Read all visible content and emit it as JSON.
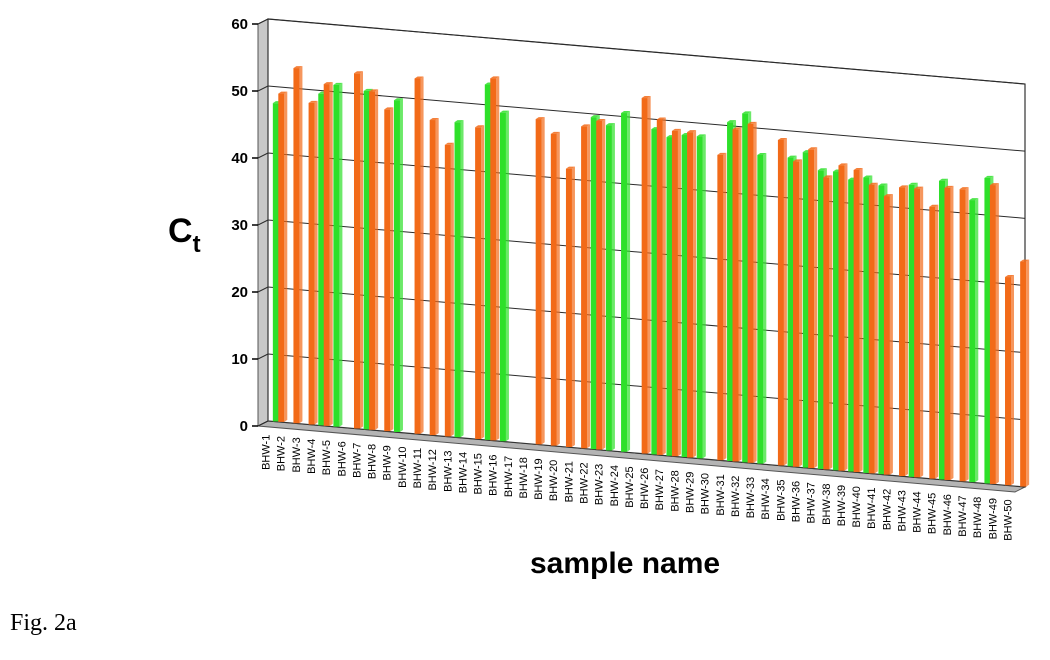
{
  "figure_caption": "Fig. 2a",
  "colors": {
    "series_a": "#f26a18",
    "series_b": "#2ee02a",
    "wall": "#c8c8c8",
    "floor": "#b4b4b4"
  },
  "chart_data": {
    "type": "bar",
    "title": "",
    "ylabel_main": "C",
    "ylabel_sub": "t",
    "xlabel": "sample name",
    "ylim": [
      0,
      60
    ],
    "yticks": [
      0,
      10,
      20,
      30,
      40,
      50,
      60
    ],
    "grid": true,
    "style": "3d",
    "categories": [
      "BHW-1",
      "BHW-2",
      "BHW-3",
      "BHW-4",
      "BHW-5",
      "BHW-6",
      "BHW-7",
      "BHW-8",
      "BHW-9",
      "BHW-10",
      "BHW-11",
      "BHW-12",
      "BHW-13",
      "BHW-14",
      "BHW-15",
      "BHW-16",
      "BHW-17",
      "BHW-18",
      "BHW-19",
      "BHW-20",
      "BHW-21",
      "BHW-22",
      "BHW-23",
      "BHW-24",
      "BHW-25",
      "BHW-26",
      "BHW-27",
      "BHW-28",
      "BHW-29",
      "BHW-30",
      "BHW-31",
      "BHW-32",
      "BHW-33",
      "BHW-34",
      "BHW-35",
      "BHW-36",
      "BHW-37",
      "BHW-38",
      "BHW-39",
      "BHW-40",
      "BHW-41",
      "BHW-42",
      "BHW-43",
      "BHW-44",
      "BHW-45",
      "BHW-46",
      "BHW-47",
      "BHW-48",
      "BHW-49",
      "BHW-50"
    ],
    "series": [
      {
        "color": "#2ee02a",
        "values": [
          47.5,
          null,
          null,
          49.5,
          51,
          null,
          50.5,
          null,
          49.5,
          null,
          null,
          null,
          47,
          null,
          53,
          49,
          null,
          null,
          null,
          null,
          null,
          49.5,
          48.5,
          50.5,
          null,
          48.5,
          47.5,
          48,
          48,
          null,
          50.5,
          52,
          46,
          null,
          46,
          47,
          44.5,
          44.5,
          43.5,
          44,
          43,
          null,
          43.5,
          null,
          44.5,
          null,
          42,
          45.5,
          null,
          null
        ]
      },
      {
        "color": "#f26a18",
        "values": [
          49,
          53,
          48,
          51,
          null,
          53,
          50.5,
          48,
          null,
          53,
          47,
          43.5,
          null,
          46.5,
          54,
          null,
          null,
          48.5,
          46.5,
          41.5,
          48,
          49,
          null,
          null,
          53,
          50,
          48.5,
          48.5,
          null,
          45.5,
          49.5,
          50.5,
          null,
          48.5,
          45.5,
          47.5,
          43.5,
          45.5,
          45,
          43,
          41.5,
          43,
          43,
          40.5,
          43.5,
          43.5,
          null,
          44.5,
          31,
          33.5
        ]
      }
    ]
  }
}
